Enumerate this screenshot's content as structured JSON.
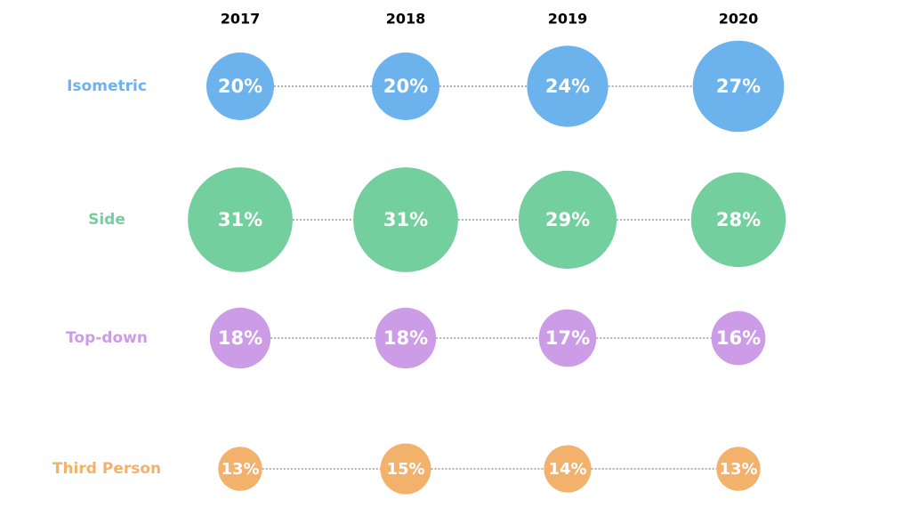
{
  "chart_data": {
    "type": "bubble",
    "categories": [
      "2017",
      "2018",
      "2019",
      "2020"
    ],
    "series": [
      {
        "name": "Isometric",
        "color": "#6cb3ee",
        "values": [
          20,
          20,
          24,
          27
        ],
        "value_labels": [
          "20%",
          "20%",
          "24%",
          "27%"
        ]
      },
      {
        "name": "Side",
        "color": "#74cf9e",
        "values": [
          31,
          31,
          29,
          28
        ],
        "value_labels": [
          "31%",
          "31%",
          "29%",
          "28%"
        ]
      },
      {
        "name": "Top-down",
        "color": "#cc9de6",
        "values": [
          18,
          18,
          17,
          16
        ],
        "value_labels": [
          "18%",
          "18%",
          "17%",
          "16%"
        ]
      },
      {
        "name": "Third Person",
        "color": "#f2b26c",
        "values": [
          13,
          15,
          14,
          13
        ],
        "value_labels": [
          "13%",
          "15%",
          "14%",
          "13%"
        ]
      }
    ]
  }
}
